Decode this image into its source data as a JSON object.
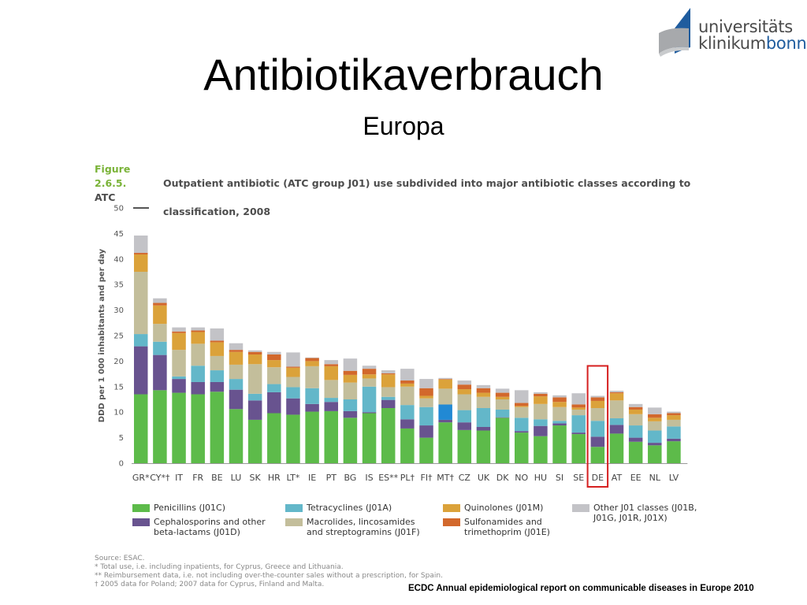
{
  "slide": {
    "title": "Antibiotikaverbrauch",
    "subtitle": "Europa",
    "logo": {
      "line1": "universitäts",
      "line2_a": "klinikum",
      "line2_b": "bonn"
    },
    "figure_number": "Figure 2.6.5.",
    "figure_caption_1": "Outpatient antibiotic (ATC group J01) use subdivided into major antibiotic classes according to ATC",
    "figure_caption_2": "classification, 2008",
    "notes": [
      "Source: ESAC.",
      "* Total use, i.e. including inpatients, for Cyprus, Greece and Lithuania.",
      "** Reimbursement data, i.e. not including over-the-counter sales without a prescription, for Spain.",
      "† 2005 data for Poland; 2007 data for Cyprus, Finland and Malta."
    ],
    "source_ref": "ECDC Annual epidemiological report on communicable diseases in Europe 2010"
  },
  "colors": {
    "penicillins": "#5dbb4a",
    "cephalosporins": "#68538f",
    "tetracyclines": "#63b7c9",
    "macrolides": "#c3be9b",
    "quinolones": "#dba23a",
    "sulfonamides": "#d2682c",
    "other": "#c3c3c7",
    "highlight": "#d62020",
    "malta_tetracyclines": "#2189d4"
  },
  "chart_data": {
    "type": "bar",
    "stacked": true,
    "ylabel": "DDD per 1 000 inhabitants and per day",
    "ylim": [
      0,
      50
    ],
    "yticks": [
      "0",
      "5",
      "10",
      "15",
      "20",
      "25",
      "30",
      "35",
      "40",
      "45",
      "50"
    ],
    "highlight_category": "DE",
    "categories": [
      "GR*",
      "CY*†",
      "IT",
      "FR",
      "BE",
      "LU",
      "SK",
      "HR",
      "LT*",
      "IE",
      "PT",
      "BG",
      "IS",
      "ES**",
      "PL†",
      "FI†",
      "MT†",
      "CZ",
      "UK",
      "DK",
      "NO",
      "HU",
      "SI",
      "SE",
      "DE",
      "AT",
      "EE",
      "NL",
      "LV"
    ],
    "series": [
      {
        "key": "penicillins",
        "name": "Penicillins (J01C)",
        "values": [
          13.5,
          14.3,
          13.8,
          13.5,
          14.0,
          10.6,
          8.5,
          9.8,
          9.5,
          10.1,
          10.2,
          8.9,
          9.8,
          10.8,
          6.8,
          5.0,
          8.0,
          6.5,
          6.4,
          8.9,
          6.0,
          5.3,
          7.4,
          5.7,
          3.2,
          5.8,
          4.2,
          3.5,
          4.3
        ]
      },
      {
        "key": "cephalosporins",
        "name": "Cephalosporins and other beta-lactams (J01D)",
        "values": [
          9.4,
          6.9,
          2.7,
          2.4,
          1.9,
          3.8,
          3.8,
          4.1,
          3.2,
          1.5,
          1.8,
          1.3,
          0.2,
          1.6,
          1.8,
          2.4,
          0.5,
          1.5,
          0.7,
          0.1,
          0.3,
          2.0,
          0.4,
          0.3,
          2.0,
          1.7,
          0.8,
          0.5,
          0.5
        ]
      },
      {
        "key": "tetracyclines",
        "name": "Tetracyclines (J01A)",
        "values": [
          2.4,
          2.6,
          0.5,
          3.2,
          2.3,
          2.1,
          1.3,
          1.6,
          2.2,
          3.1,
          0.8,
          2.3,
          5.0,
          0.6,
          2.8,
          3.6,
          3.0,
          2.4,
          3.7,
          1.5,
          2.6,
          1.3,
          0.5,
          3.4,
          3.1,
          1.3,
          2.4,
          2.4,
          2.4
        ]
      },
      {
        "key": "macrolides",
        "name": "Macrolides, lincosamides and streptogramins (J01F)",
        "values": [
          12.2,
          3.5,
          5.2,
          4.3,
          2.8,
          2.8,
          5.8,
          3.3,
          2.0,
          4.3,
          3.5,
          3.3,
          1.6,
          1.9,
          3.6,
          1.7,
          3.1,
          3.1,
          2.2,
          2.0,
          2.1,
          3.0,
          2.7,
          1.1,
          2.5,
          3.5,
          2.2,
          1.8,
          1.3
        ]
      },
      {
        "key": "quinolones",
        "name": "Quinolones (J01M)",
        "values": [
          3.4,
          3.6,
          3.3,
          2.3,
          2.7,
          2.5,
          1.9,
          1.4,
          1.8,
          1.0,
          2.7,
          1.5,
          0.8,
          2.5,
          0.6,
          0.5,
          1.8,
          1.0,
          0.8,
          0.5,
          0.2,
          1.5,
          1.0,
          0.4,
          1.4,
          1.4,
          0.9,
          0.7,
          0.9
        ]
      },
      {
        "key": "sulfonamides",
        "name": "Sulfonamides and trimethoprim (J01E)",
        "values": [
          0.3,
          0.5,
          0.3,
          0.3,
          0.3,
          0.4,
          0.5,
          1.1,
          0.2,
          0.6,
          0.4,
          0.8,
          1.1,
          0.2,
          0.6,
          1.5,
          0.1,
          0.9,
          0.9,
          0.8,
          0.6,
          0.5,
          0.9,
          0.6,
          0.7,
          0.2,
          0.5,
          0.7,
          0.4
        ]
      },
      {
        "key": "other",
        "name": "Other J01 classes (J01B, J01G, J01R, J01X)",
        "values": [
          3.4,
          0.9,
          0.8,
          0.6,
          2.4,
          1.3,
          0.3,
          0.5,
          2.8,
          0.1,
          0.8,
          2.4,
          0.6,
          0.6,
          2.3,
          1.8,
          0.2,
          0.8,
          0.6,
          0.8,
          2.5,
          0.3,
          0.4,
          2.2,
          0.3,
          0.3,
          0.6,
          1.3,
          0.3
        ]
      }
    ]
  }
}
